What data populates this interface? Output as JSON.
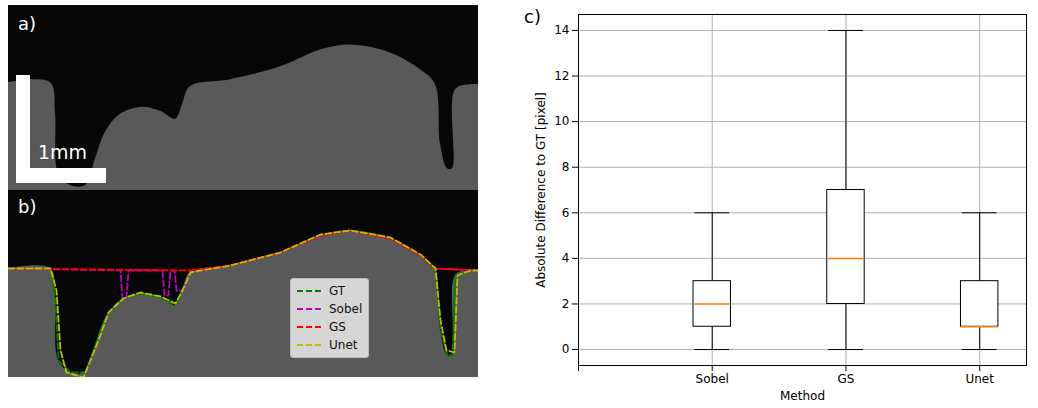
{
  "chart_data": [
    {
      "type": "image",
      "panel": "a)",
      "annotations": [
        "1mm"
      ]
    },
    {
      "type": "line",
      "panel": "b)",
      "xlim": [
        0,
        470
      ],
      "ylim": [
        187,
        0
      ],
      "tick_labels": false,
      "legend": "bottom",
      "series": [
        {
          "name": "GT",
          "color": "#008000",
          "line_style": "dashed",
          "x": [
            0,
            42,
            47,
            50,
            62,
            77,
            87,
            97,
            112,
            132,
            152,
            167,
            174,
            182,
            222,
            272,
            312,
            342,
            382,
            412,
            427,
            432,
            439,
            444,
            447,
            462,
            470
          ],
          "values": [
            78,
            78,
            110,
            170,
            182,
            182,
            155,
            128,
            110,
            103,
            107,
            115,
            100,
            82,
            75,
            62,
            45,
            40,
            48,
            65,
            80,
            140,
            165,
            165,
            85,
            80,
            80
          ]
        },
        {
          "name": "Sobel",
          "color": "#bf00bf",
          "line_style": "dashed",
          "x": [
            0,
            112,
            114,
            118,
            120,
            154,
            156,
            160,
            162,
            166,
            168,
            174,
            182,
            222,
            272,
            312,
            342,
            382,
            412,
            427,
            470
          ],
          "values": [
            78,
            80,
            108,
            108,
            80,
            80,
            105,
            105,
            80,
            80,
            100,
            100,
            82,
            75,
            62,
            45,
            40,
            48,
            65,
            78,
            80
          ]
        },
        {
          "name": "GS",
          "color": "#ff0000",
          "line_style": "dashed",
          "x": [
            0,
            182,
            222,
            272,
            312,
            342,
            382,
            412,
            427,
            470
          ],
          "values": [
            78,
            80,
            75,
            62,
            45,
            40,
            48,
            65,
            78,
            80
          ]
        },
        {
          "name": "Unet",
          "color": "#bfbf00",
          "line_style": "dashed",
          "x": [
            0,
            42,
            48,
            52,
            58,
            75,
            90,
            100,
            115,
            132,
            152,
            167,
            174,
            182,
            222,
            272,
            312,
            342,
            382,
            412,
            427,
            432,
            438,
            446,
            449,
            462,
            470
          ],
          "values": [
            78,
            78,
            100,
            160,
            182,
            187,
            150,
            122,
            108,
            102,
            106,
            113,
            100,
            82,
            75,
            62,
            44,
            40,
            47,
            64,
            78,
            130,
            160,
            162,
            85,
            80,
            80
          ]
        }
      ]
    },
    {
      "type": "box",
      "panel": "c)",
      "xlabel": "Method",
      "ylabel": "Absolute Difference to GT [pixel]",
      "categories": [
        null,
        "Sobel",
        "GS",
        "Unet"
      ],
      "min": [
        null,
        0,
        0,
        0
      ],
      "q1": [
        null,
        1,
        2,
        1
      ],
      "median": [
        null,
        2,
        4,
        1
      ],
      "q3": [
        null,
        3,
        7,
        3
      ],
      "max": [
        null,
        6,
        14,
        6
      ],
      "color": "#ff7f0e",
      "xlim": [
        0,
        3.35
      ],
      "ylim": [
        -0.7,
        14.7
      ],
      "yticks": [
        0,
        2,
        4,
        6,
        8,
        10,
        12,
        14
      ],
      "grid": true
    }
  ]
}
